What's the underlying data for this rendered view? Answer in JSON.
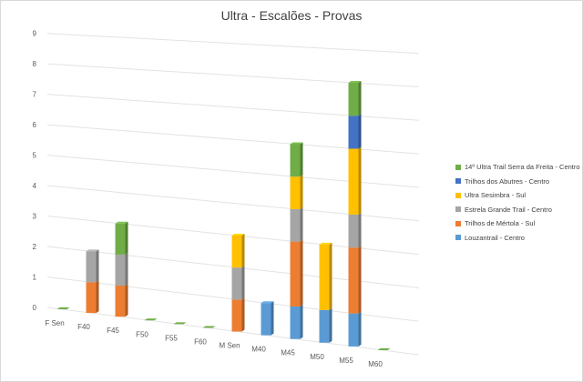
{
  "chart_data": {
    "type": "bar",
    "stacked": true,
    "three_d": true,
    "title": "Ultra - Escalões - Provas",
    "xlabel": "",
    "ylabel": "",
    "ylim": [
      0,
      9
    ],
    "yticks": [
      0,
      1,
      2,
      3,
      4,
      5,
      6,
      7,
      8,
      9
    ],
    "categories": [
      "F Sen",
      "F40",
      "F45",
      "F50",
      "F55",
      "F60",
      "M Sen",
      "M40",
      "M45",
      "M50",
      "M55",
      "M60"
    ],
    "series": [
      {
        "name": "Louzantrail - Centro",
        "color": "#5b9bd5",
        "values": [
          0,
          0,
          0,
          0,
          0,
          0,
          0,
          1,
          1,
          1,
          1,
          0
        ]
      },
      {
        "name": "Trilhos de Mértola - Sul",
        "color": "#ed7d31",
        "values": [
          0,
          1,
          1,
          0,
          0,
          0,
          1,
          0,
          2,
          0,
          2,
          0
        ]
      },
      {
        "name": "Estrela Grande Trail - Centro",
        "color": "#a5a5a5",
        "values": [
          0,
          1,
          1,
          0,
          0,
          0,
          1,
          0,
          1,
          0,
          1,
          0
        ]
      },
      {
        "name": "Ultra Sesimbra - Sul",
        "color": "#ffc000",
        "values": [
          0,
          0,
          0,
          0,
          0,
          0,
          1,
          0,
          1,
          2,
          2,
          0
        ]
      },
      {
        "name": "Trilhos dos Abutres - Centro",
        "color": "#4472c4",
        "values": [
          0,
          0,
          0,
          0,
          0,
          0,
          0,
          0,
          0,
          0,
          1,
          0
        ]
      },
      {
        "name": "14º Ultra Trail Serra da Freita - Centro",
        "color": "#70ad47",
        "values": [
          0,
          0,
          1,
          0,
          0,
          0,
          0,
          0,
          1,
          0,
          1,
          0
        ]
      }
    ],
    "legend": "right",
    "legend_order": "reverse",
    "grid": true
  }
}
